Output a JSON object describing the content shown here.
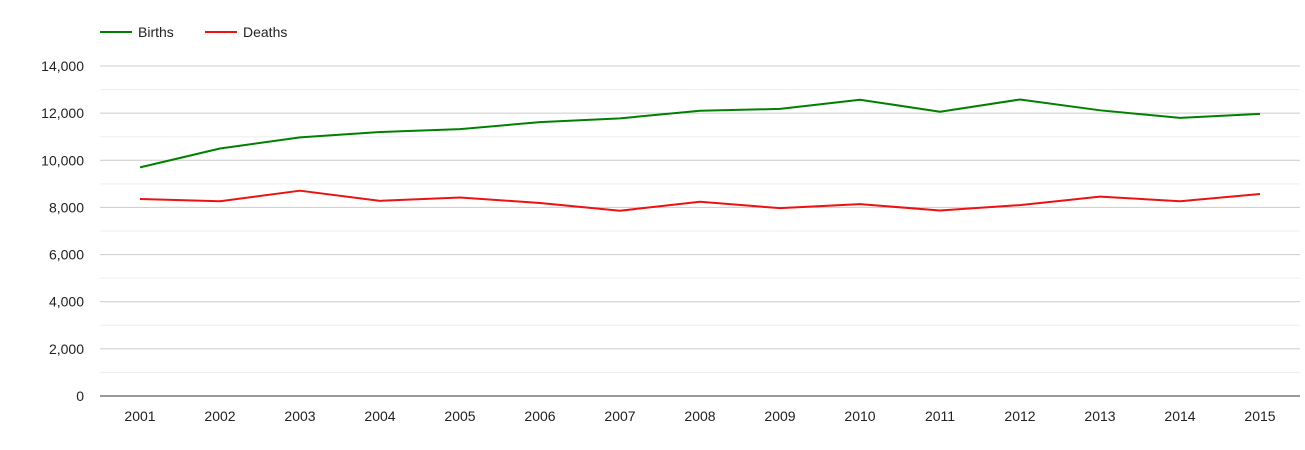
{
  "chart_data": {
    "type": "line",
    "x": [
      "2001",
      "2002",
      "2003",
      "2004",
      "2005",
      "2006",
      "2007",
      "2008",
      "2009",
      "2010",
      "2011",
      "2012",
      "2013",
      "2014",
      "2015"
    ],
    "series": [
      {
        "name": "Births",
        "color": "#008000",
        "values": [
          9700,
          10500,
          10970,
          11200,
          11320,
          11620,
          11780,
          12100,
          12180,
          12570,
          12060,
          12580,
          12120,
          11800,
          11970
        ]
      },
      {
        "name": "Deaths",
        "color": "#ee1111",
        "values": [
          8360,
          8260,
          8710,
          8280,
          8420,
          8190,
          7860,
          8240,
          7970,
          8140,
          7870,
          8100,
          8460,
          8260,
          8570
        ]
      }
    ],
    "ylim": [
      0,
      14000
    ],
    "yticks": [
      0,
      2000,
      4000,
      6000,
      8000,
      10000,
      12000,
      14000
    ],
    "ytick_labels": [
      "0",
      "2,000",
      "4,000",
      "6,000",
      "8,000",
      "10,000",
      "12,000",
      "14,000"
    ],
    "grid": true,
    "legend_position": "top-left"
  },
  "colors": {
    "gridline": "#cccccc",
    "minor_gridline": "#eeeeee",
    "axis": "#333333"
  }
}
